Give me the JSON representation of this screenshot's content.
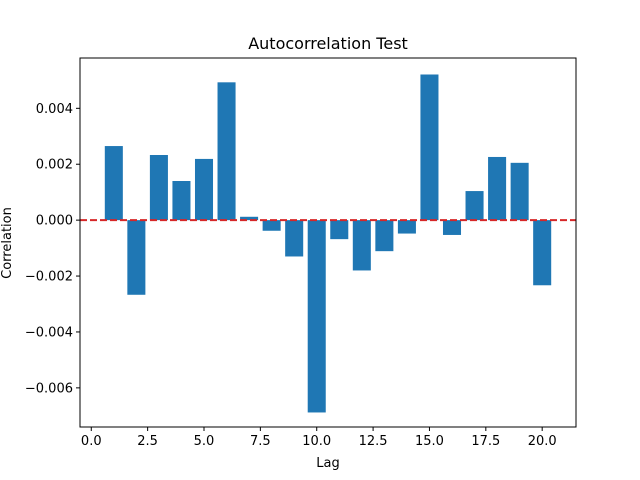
{
  "chart_data": {
    "type": "bar",
    "title": "Autocorrelation Test",
    "xlabel": "Lag",
    "ylabel": "Correlation",
    "x": [
      1,
      2,
      3,
      4,
      5,
      6,
      7,
      8,
      9,
      10,
      11,
      12,
      13,
      14,
      15,
      16,
      17,
      18,
      19,
      20
    ],
    "values": [
      0.00265,
      -0.00267,
      0.00233,
      0.0014,
      0.00219,
      0.00493,
      0.00012,
      -0.00038,
      -0.0013,
      -0.00688,
      -0.00068,
      -0.0018,
      -0.00111,
      -0.00048,
      0.00521,
      -0.00053,
      0.00104,
      0.00226,
      0.00205,
      -0.00233
    ],
    "xlim": [
      -0.5,
      21.5
    ],
    "ylim": [
      -0.0074,
      0.0058
    ],
    "xticks": [
      0.0,
      2.5,
      5.0,
      7.5,
      10.0,
      12.5,
      15.0,
      17.5,
      20.0
    ],
    "xtick_labels": [
      "0.0",
      "2.5",
      "5.0",
      "7.5",
      "10.0",
      "12.5",
      "15.0",
      "17.5",
      "20.0"
    ],
    "yticks": [
      -0.006,
      -0.004,
      -0.002,
      0.0,
      0.002,
      0.004
    ],
    "ytick_labels": [
      "−0.006",
      "−0.004",
      "−0.002",
      "0.000",
      "0.002",
      "0.004"
    ],
    "bar_color": "#1f77b4",
    "reference_line": {
      "y": 0,
      "color": "#d62728",
      "style": "dashed"
    },
    "grid": false,
    "legend": "none"
  }
}
